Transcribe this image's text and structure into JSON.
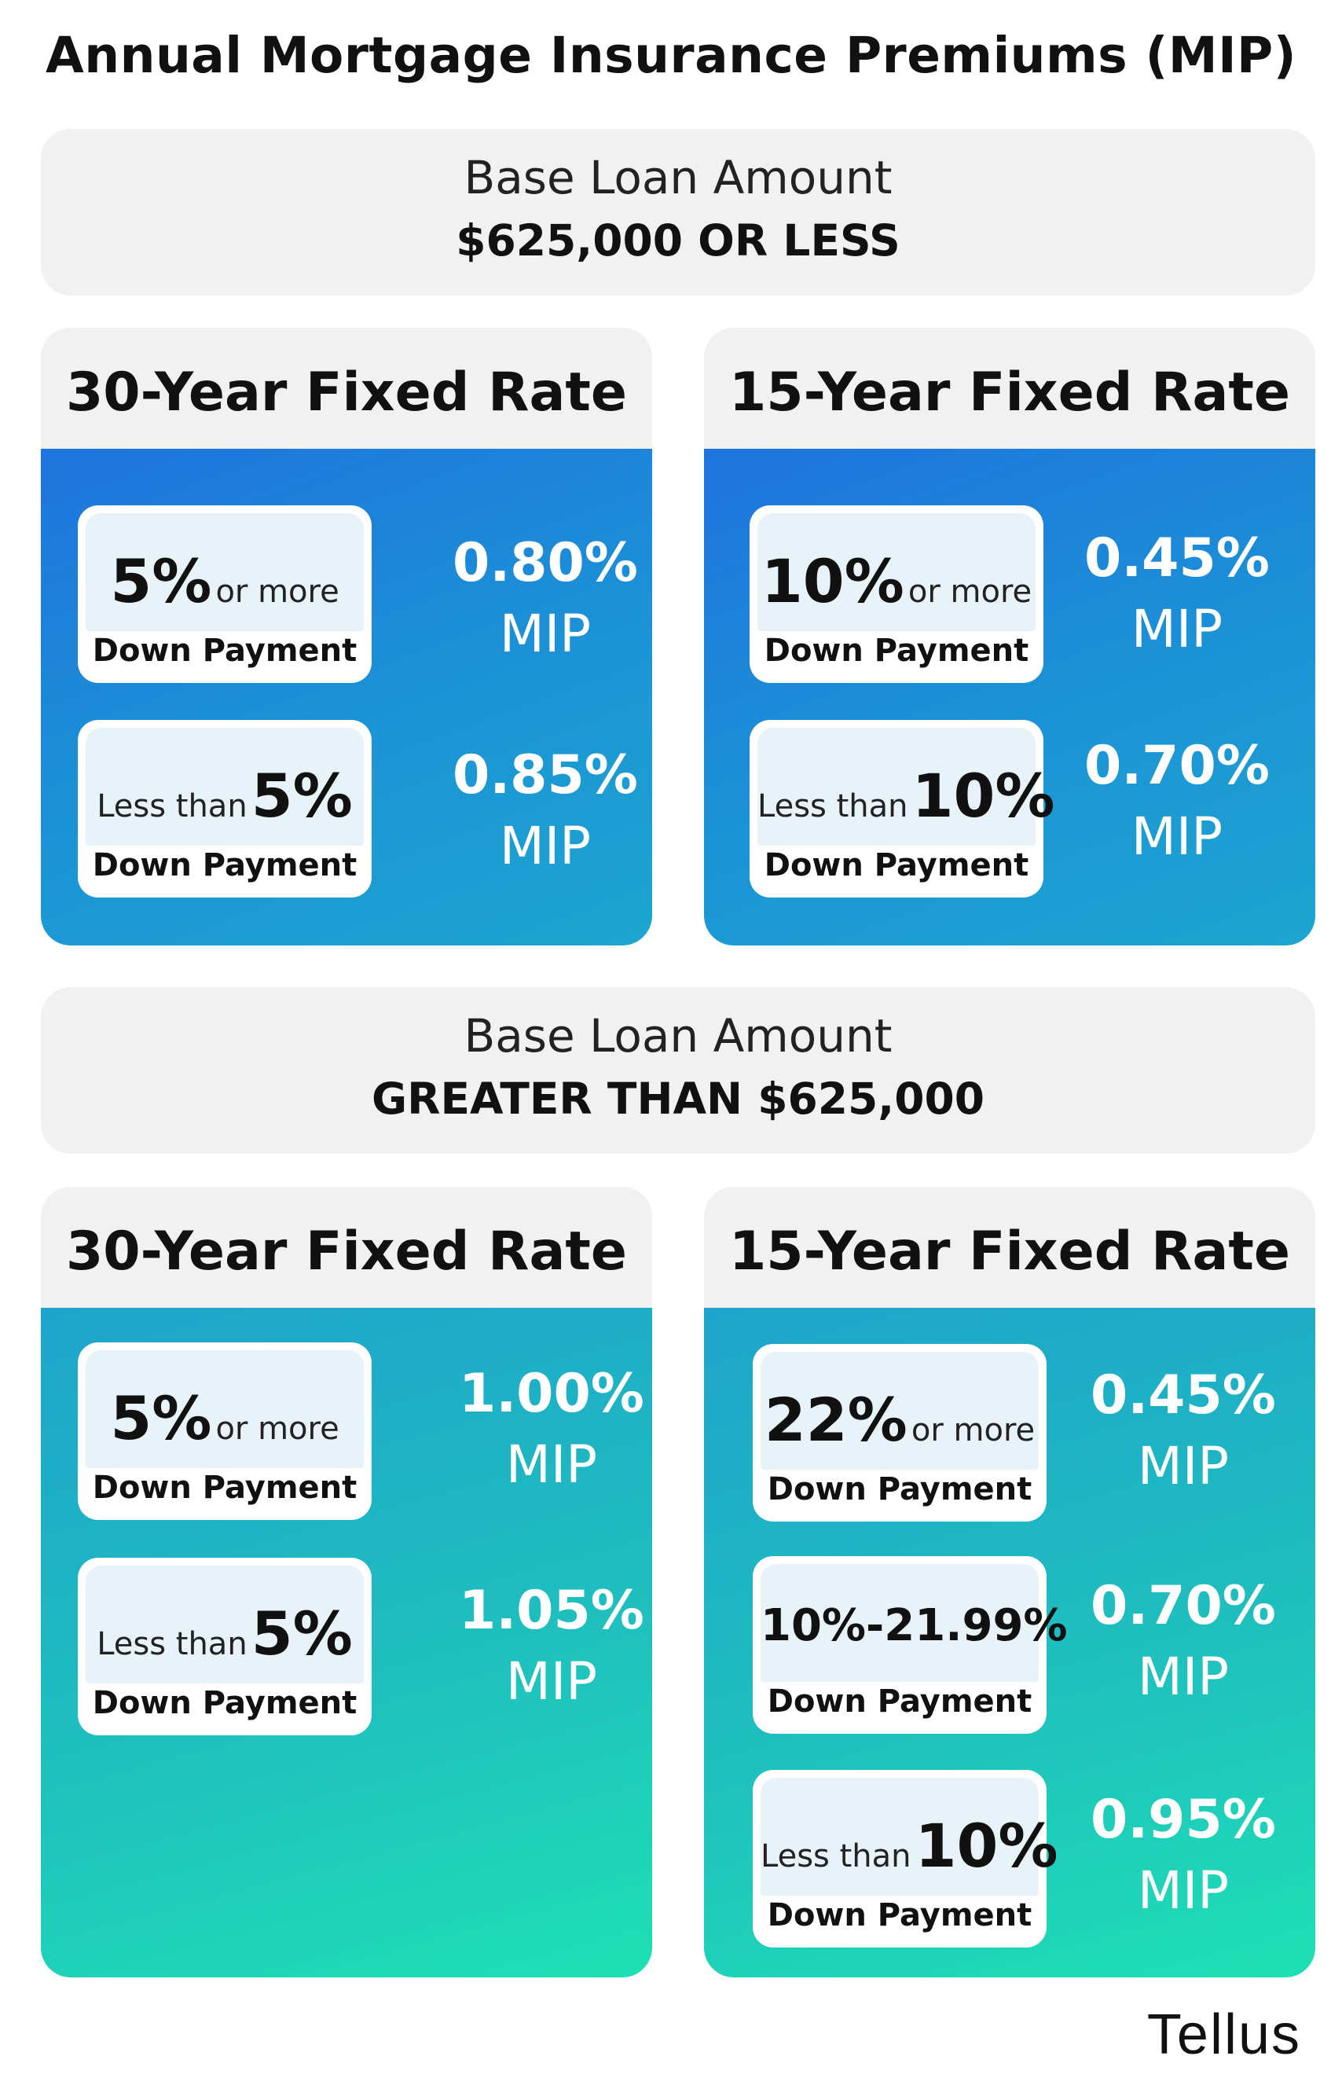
{
  "title": "Annual Mortgage Insurance Premiums (MIP)",
  "brand": "Tellus",
  "sections": [
    {
      "base_label": "Base Loan Amount",
      "base_value": "$625,000 OR LESS",
      "panels": [
        {
          "heading": "30-Year Fixed Rate",
          "rows": [
            {
              "pre": "",
              "big": "5%",
              "post": "or more",
              "sub": "Down Payment",
              "rate": "0.80%",
              "unit": "MIP"
            },
            {
              "pre": "Less than",
              "big": "5%",
              "post": "",
              "sub": "Down Payment",
              "rate": "0.85%",
              "unit": "MIP"
            }
          ]
        },
        {
          "heading": "15-Year Fixed Rate",
          "rows": [
            {
              "pre": "",
              "big": "10%",
              "post": "or more",
              "sub": "Down Payment",
              "rate": "0.45%",
              "unit": "MIP"
            },
            {
              "pre": "Less than",
              "big": "10%",
              "post": "",
              "sub": "Down Payment",
              "rate": "0.70%",
              "unit": "MIP"
            }
          ]
        }
      ]
    },
    {
      "base_label": "Base Loan Amount",
      "base_value": "GREATER THAN $625,000",
      "panels": [
        {
          "heading": "30-Year Fixed Rate",
          "rows": [
            {
              "pre": "",
              "big": "5%",
              "post": "or more",
              "sub": "Down Payment",
              "rate": "1.00%",
              "unit": "MIP"
            },
            {
              "pre": "Less than",
              "big": "5%",
              "post": "",
              "sub": "Down Payment",
              "rate": "1.05%",
              "unit": "MIP"
            }
          ]
        },
        {
          "heading": "15-Year Fixed Rate",
          "rows": [
            {
              "pre": "",
              "big": "22%",
              "post": "or more",
              "sub": "Down Payment",
              "rate": "0.45%",
              "unit": "MIP"
            },
            {
              "pre": "",
              "big": "10%-21.99%",
              "post": "",
              "sub": "Down Payment",
              "rate": "0.70%",
              "unit": "MIP"
            },
            {
              "pre": "Less than",
              "big": "10%",
              "post": "",
              "sub": "Down Payment",
              "rate": "0.95%",
              "unit": "MIP"
            }
          ]
        }
      ]
    }
  ]
}
